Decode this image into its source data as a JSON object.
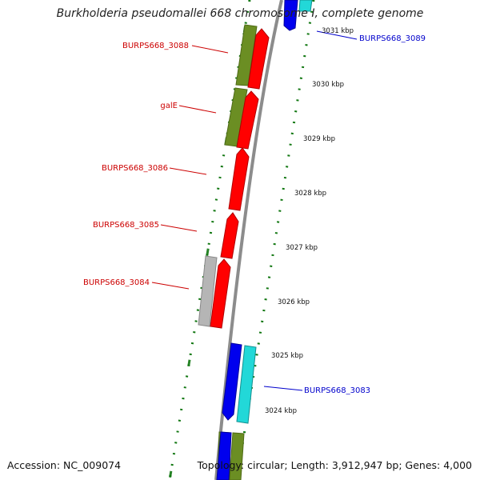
{
  "title": "Burkholderia pseudomallei 668 chromosome I, complete genome",
  "footer": {
    "accession": "Accession: NC_009074",
    "summary": "Topology: circular; Length: 3,912,947 bp; Genes: 4,000"
  },
  "colors": {
    "forward_gene": "#ff0000",
    "forward_gene_label": "#cc0000",
    "reverse_gene": "#0000ee",
    "reverse_gene_label": "#0000cc",
    "olive_cds": "#6b8e23",
    "grey_cds": "#b5b5b5",
    "cyan_cds": "#22d8d8",
    "backbone": "#8c8c8c",
    "tick": "#117711"
  },
  "scale": {
    "unit": "kbp",
    "ticks": [
      "3031 kbp",
      "3030 kbp",
      "3029 kbp",
      "3028 kbp",
      "3027 kbp",
      "3026 kbp",
      "3025 kbp",
      "3024 kbp"
    ]
  },
  "labels": {
    "forward": [
      {
        "name": "BURPS668_3088"
      },
      {
        "name": "galE"
      },
      {
        "name": "BURPS668_3086"
      },
      {
        "name": "BURPS668_3085"
      },
      {
        "name": "BURPS668_3084"
      }
    ],
    "reverse": [
      {
        "name": "BURPS668_3089"
      },
      {
        "name": "BURPS668_3083"
      }
    ]
  }
}
